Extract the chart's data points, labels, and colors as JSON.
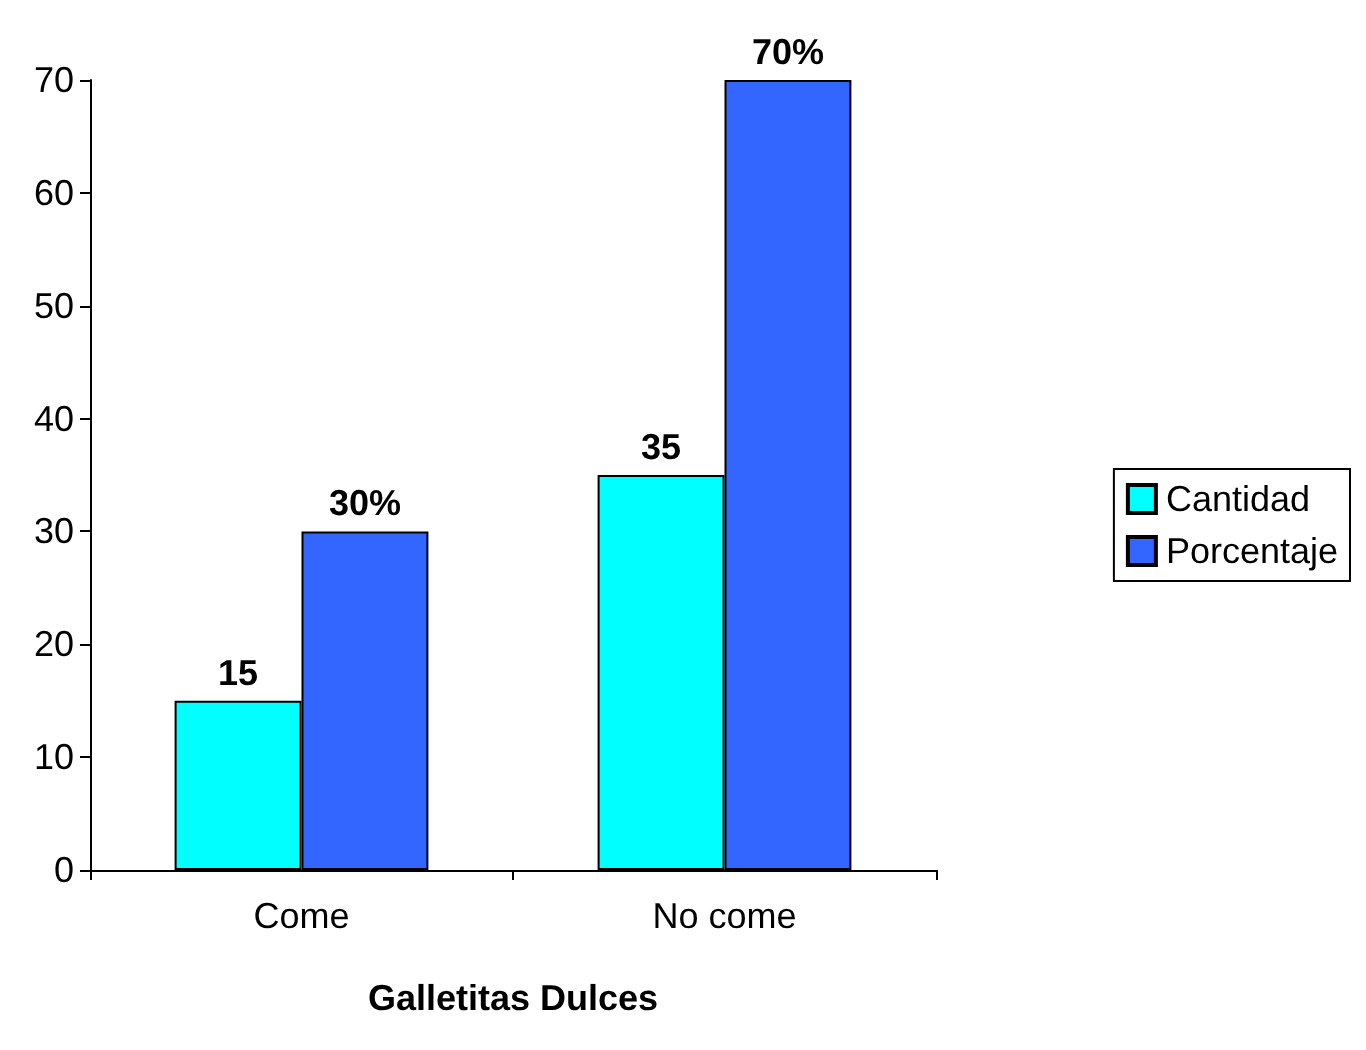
{
  "chart_data": {
    "type": "bar",
    "xlabel": "Galletitas Dulces",
    "categories": [
      "Come",
      "No come"
    ],
    "series": [
      {
        "name": "Cantidad",
        "color": "#00ffff",
        "values": [
          15,
          35
        ],
        "value_labels": [
          "15",
          "35"
        ]
      },
      {
        "name": "Porcentaje",
        "color": "#3366ff",
        "values": [
          30,
          70
        ],
        "value_labels": [
          "30%",
          "70%"
        ]
      }
    ],
    "ylim": [
      0,
      70
    ],
    "yticks": [
      0,
      10,
      20,
      30,
      40,
      50,
      60,
      70
    ],
    "grid": false,
    "legend": "right"
  }
}
